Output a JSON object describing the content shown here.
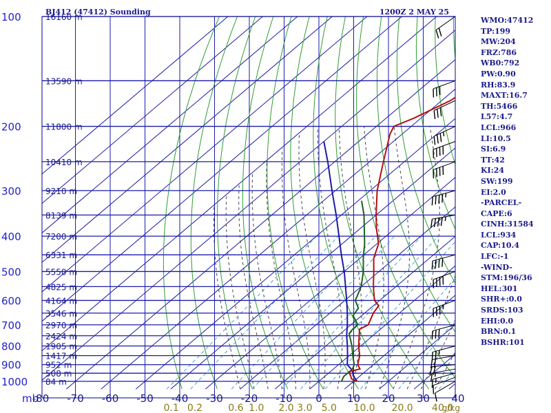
{
  "header": {
    "station_title": "BJ412 (47412) Sounding",
    "valid_time": "1200Z  2 MAY 25"
  },
  "stats": [
    "WMO:47412",
    "TP:199",
    "MW:204",
    "FRZ:786",
    "WB0:792",
    "PW:0.90",
    "RH:83.9",
    "MAXT:16.7",
    "TH:5466",
    "L57:4.7",
    "LCL:966",
    "LI:10.5",
    "SI:6.9",
    "TT:42",
    "KI:24",
    "SW:199",
    "EI:2.0",
    "-PARCEL-",
    "CAPE:6",
    "CINH:31584",
    "LCL:934",
    "CAP:10.4",
    "LFC:-1",
    "-WIND-",
    "STM:196/36",
    "HEL:301",
    "SHR+:0.0",
    "SRDS:103",
    "EHI:0.0",
    "BRN:0.1",
    "BSHR:101"
  ],
  "colors": {
    "frame": "#00008b",
    "isobar": "#1a1aa8",
    "isotherm": "#1a1aa8",
    "dry_adiabat": "#2e9e2e",
    "moist_adiabat": "#444444",
    "mixing_ratio": "#4aa0c8",
    "temperature": "#b01010",
    "dewpoint": "#1c5e1c",
    "parcel": "#1a1aa8",
    "pressure_label": "#2222c8",
    "temp_label": "#1a1a8c",
    "mixing_label": "#8b7a1a",
    "text": "#1a1a8c"
  },
  "chart_data": {
    "type": "skew-t",
    "pressure_unit": "mb",
    "pressure_levels": [
      {
        "p": 100,
        "label": "100",
        "height": "16160 m"
      },
      {
        "p": 150,
        "label": "",
        "height": "13590 m"
      },
      {
        "p": 200,
        "label": "200",
        "height": "11800 m"
      },
      {
        "p": 250,
        "label": "",
        "height": "10410 m"
      },
      {
        "p": 300,
        "label": "300",
        "height": "9210 m"
      },
      {
        "p": 350,
        "label": "",
        "height": "8139 m"
      },
      {
        "p": 400,
        "label": "400",
        "height": "7200 m"
      },
      {
        "p": 450,
        "label": "",
        "height": "6331 m"
      },
      {
        "p": 500,
        "label": "500",
        "height": "5550 m"
      },
      {
        "p": 550,
        "label": "",
        "height": "4825 m"
      },
      {
        "p": 600,
        "label": "600",
        "height": "4164 m"
      },
      {
        "p": 650,
        "label": "",
        "height": "3546 m"
      },
      {
        "p": 700,
        "label": "700",
        "height": "2970 m"
      },
      {
        "p": 750,
        "label": "",
        "height": "2424 m"
      },
      {
        "p": 800,
        "label": "800",
        "height": "1905 m"
      },
      {
        "p": 850,
        "label": "",
        "height": "1417 m"
      },
      {
        "p": 900,
        "label": "900",
        "height": "952 m"
      },
      {
        "p": 950,
        "label": "",
        "height": "508 m"
      },
      {
        "p": 1000,
        "label": "1000",
        "height": "84 m"
      }
    ],
    "temperature_ticks": [
      -80,
      -70,
      -60,
      -50,
      -40,
      -30,
      -20,
      -10,
      0,
      10,
      20,
      30,
      40
    ],
    "temperature_tick_labels": [
      "-80",
      "-70",
      "-60",
      "-50",
      "-40",
      "-30",
      "-20",
      "-10",
      "0",
      "10",
      "20",
      "30",
      "40"
    ],
    "mixing_ratio_labels": [
      {
        "w": 0.1,
        "label": "0.1"
      },
      {
        "w": 0.2,
        "label": "0.2"
      },
      {
        "w": 0.6,
        "label": "0.6"
      },
      {
        "w": 1.0,
        "label": "1.0"
      },
      {
        "w": 2.0,
        "label": "2.0"
      },
      {
        "w": 3.0,
        "label": "3.0"
      },
      {
        "w": 5.0,
        "label": "5.0"
      },
      {
        "w": 10.0,
        "label": "10.0"
      },
      {
        "w": 20.0,
        "label": "20.0"
      },
      {
        "w": 40.0,
        "label": "40.0"
      }
    ],
    "mixing_ratio_unit": "g/kg",
    "axis_corner_label": "mb",
    "temperature_profile": [
      {
        "p": 1000,
        "t": 11.0
      },
      {
        "p": 985,
        "t": 8.6
      },
      {
        "p": 940,
        "t": 5.4
      },
      {
        "p": 925,
        "t": 7.6
      },
      {
        "p": 900,
        "t": 5.5
      },
      {
        "p": 850,
        "t": 3.0
      },
      {
        "p": 800,
        "t": -0.6
      },
      {
        "p": 760,
        "t": -3.2
      },
      {
        "p": 720,
        "t": -6.0
      },
      {
        "p": 700,
        "t": -5.0
      },
      {
        "p": 650,
        "t": -7.5
      },
      {
        "p": 620,
        "t": -8.5
      },
      {
        "p": 600,
        "t": -11.5
      },
      {
        "p": 550,
        "t": -16.5
      },
      {
        "p": 500,
        "t": -21.5
      },
      {
        "p": 460,
        "t": -26.0
      },
      {
        "p": 420,
        "t": -29.5
      },
      {
        "p": 380,
        "t": -35.5
      },
      {
        "p": 350,
        "t": -40.0
      },
      {
        "p": 300,
        "t": -48.0
      },
      {
        "p": 250,
        "t": -56.0
      },
      {
        "p": 210,
        "t": -63.5
      },
      {
        "p": 200,
        "t": -65.0
      },
      {
        "p": 190,
        "t": -62.0
      },
      {
        "p": 170,
        "t": -57.5
      },
      {
        "p": 150,
        "t": -55.0
      },
      {
        "p": 145,
        "t": -53.0
      },
      {
        "p": 100,
        "t": -60.0
      }
    ],
    "dewpoint_profile": [
      {
        "p": 1000,
        "t": 6.5
      },
      {
        "p": 970,
        "t": 5.5
      },
      {
        "p": 925,
        "t": 5.5
      },
      {
        "p": 900,
        "t": 4.5
      },
      {
        "p": 850,
        "t": 1.0
      },
      {
        "p": 800,
        "t": -2.5
      },
      {
        "p": 740,
        "t": -7.5
      },
      {
        "p": 720,
        "t": -8.0
      },
      {
        "p": 700,
        "t": -8.0
      },
      {
        "p": 660,
        "t": -12.5
      },
      {
        "p": 630,
        "t": -13.5
      },
      {
        "p": 600,
        "t": -17.0
      },
      {
        "p": 550,
        "t": -20.0
      },
      {
        "p": 500,
        "t": -24.5
      },
      {
        "p": 460,
        "t": -29.0
      },
      {
        "p": 420,
        "t": -33.5
      },
      {
        "p": 380,
        "t": -39.0
      },
      {
        "p": 350,
        "t": -43.5
      },
      {
        "p": 320,
        "t": -49.0
      }
    ],
    "parcel_profile": [
      {
        "p": 1000,
        "t": 11.0
      },
      {
        "p": 966,
        "t": 8.0
      },
      {
        "p": 934,
        "t": 6.0
      },
      {
        "p": 900,
        "t": 2.5
      },
      {
        "p": 850,
        "t": -0.5
      },
      {
        "p": 800,
        "t": -3.8
      },
      {
        "p": 750,
        "t": -7.5
      },
      {
        "p": 700,
        "t": -11.0
      },
      {
        "p": 650,
        "t": -15.0
      },
      {
        "p": 600,
        "t": -19.5
      },
      {
        "p": 550,
        "t": -24.5
      },
      {
        "p": 500,
        "t": -30.0
      },
      {
        "p": 450,
        "t": -36.5
      },
      {
        "p": 400,
        "t": -43.5
      },
      {
        "p": 350,
        "t": -51.5
      },
      {
        "p": 300,
        "t": -61.0
      },
      {
        "p": 250,
        "t": -72.0
      },
      {
        "p": 220,
        "t": -80.0
      }
    ],
    "wind_barbs": [
      {
        "p": 1000,
        "dir": 240,
        "kt": 10
      },
      {
        "p": 975,
        "dir": 250,
        "kt": 10
      },
      {
        "p": 950,
        "dir": 255,
        "kt": 15
      },
      {
        "p": 925,
        "dir": 260,
        "kt": 15
      },
      {
        "p": 900,
        "dir": 265,
        "kt": 20
      },
      {
        "p": 850,
        "dir": 260,
        "kt": 20
      },
      {
        "p": 800,
        "dir": 255,
        "kt": 25
      },
      {
        "p": 700,
        "dir": 255,
        "kt": 30
      },
      {
        "p": 600,
        "dir": 250,
        "kt": 35
      },
      {
        "p": 500,
        "dir": 250,
        "kt": 40
      },
      {
        "p": 450,
        "dir": 255,
        "kt": 40
      },
      {
        "p": 350,
        "dir": 260,
        "kt": 45
      },
      {
        "p": 300,
        "dir": 255,
        "kt": 45
      },
      {
        "p": 250,
        "dir": 250,
        "kt": 40
      },
      {
        "p": 220,
        "dir": 250,
        "kt": 40
      },
      {
        "p": 200,
        "dir": 245,
        "kt": 35
      },
      {
        "p": 170,
        "dir": 245,
        "kt": 30
      },
      {
        "p": 150,
        "dir": 250,
        "kt": 30
      },
      {
        "p": 100,
        "dir": 235,
        "kt": 20
      }
    ]
  }
}
